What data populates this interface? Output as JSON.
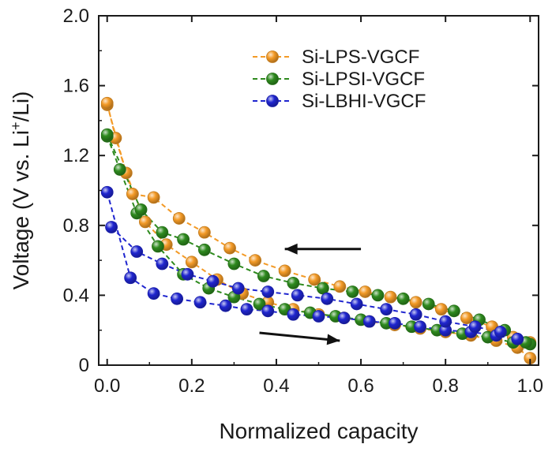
{
  "chart_data": {
    "type": "scatter",
    "title": "",
    "xlabel": "Normalized capacity",
    "ylabel": "Voltage (V vs. Li+/Li)",
    "ylabel_parts": {
      "pre": "Voltage (V vs. Li",
      "sup": "+",
      "post": "/Li)"
    },
    "xlim": [
      -0.02,
      1.02
    ],
    "ylim": [
      0.0,
      2.0
    ],
    "xticks": [
      0.0,
      0.2,
      0.4,
      0.6,
      0.8,
      1.0
    ],
    "xtick_labels": [
      "0.0",
      "0.2",
      "0.4",
      "0.6",
      "0.8",
      "1.0"
    ],
    "yticks": [
      0.0,
      0.4,
      0.8,
      1.2,
      1.6,
      2.0
    ],
    "ytick_labels": [
      "0",
      "0.4",
      "0.8",
      "1.2",
      "1.6",
      "2.0"
    ],
    "legend_position": "top-right",
    "annotations": [
      {
        "type": "arrow",
        "direction": "left",
        "from": [
          0.6,
          0.665
        ],
        "to": [
          0.42,
          0.665
        ],
        "meaning": "charge"
      },
      {
        "type": "arrow",
        "direction": "right",
        "from": [
          0.36,
          0.185
        ],
        "to": [
          0.55,
          0.14
        ],
        "meaning": "discharge"
      }
    ],
    "series": [
      {
        "name": "Si-LPS-VGCF",
        "color": "#f39a26",
        "discharge": {
          "x": [
            0.0,
            0.045,
            0.09,
            0.14,
            0.2,
            0.26,
            0.32,
            0.38,
            0.44,
            0.5,
            0.56,
            0.62,
            0.68,
            0.74,
            0.8,
            0.86,
            0.92,
            0.97,
            1.0
          ],
          "y": [
            1.49,
            1.1,
            0.82,
            0.69,
            0.59,
            0.49,
            0.41,
            0.36,
            0.32,
            0.29,
            0.27,
            0.25,
            0.23,
            0.21,
            0.19,
            0.17,
            0.14,
            0.1,
            0.04
          ]
        },
        "charge": {
          "x": [
            0.0,
            0.02,
            0.06,
            0.11,
            0.17,
            0.23,
            0.29,
            0.35,
            0.42,
            0.49,
            0.55,
            0.61,
            0.67,
            0.73,
            0.79,
            0.85,
            0.91,
            0.96,
            1.0
          ],
          "y": [
            1.5,
            1.3,
            0.98,
            0.96,
            0.84,
            0.76,
            0.67,
            0.6,
            0.54,
            0.49,
            0.45,
            0.42,
            0.39,
            0.36,
            0.32,
            0.27,
            0.22,
            0.16,
            0.13
          ]
        }
      },
      {
        "name": "Si-LPSI-VGCF",
        "color": "#2e8a1e",
        "discharge": {
          "x": [
            0.0,
            0.03,
            0.07,
            0.12,
            0.18,
            0.24,
            0.3,
            0.36,
            0.42,
            0.48,
            0.54,
            0.6,
            0.66,
            0.72,
            0.78,
            0.84,
            0.9,
            0.96,
            1.0
          ],
          "y": [
            1.31,
            1.12,
            0.87,
            0.68,
            0.52,
            0.44,
            0.39,
            0.35,
            0.32,
            0.3,
            0.28,
            0.26,
            0.24,
            0.22,
            0.2,
            0.18,
            0.16,
            0.13,
            0.12
          ]
        },
        "charge": {
          "x": [
            0.0,
            0.08,
            0.13,
            0.18,
            0.23,
            0.3,
            0.37,
            0.44,
            0.51,
            0.58,
            0.64,
            0.7,
            0.76,
            0.82,
            0.88,
            0.94,
            0.99
          ],
          "y": [
            1.32,
            0.89,
            0.76,
            0.72,
            0.66,
            0.58,
            0.51,
            0.47,
            0.44,
            0.42,
            0.4,
            0.38,
            0.35,
            0.31,
            0.26,
            0.2,
            0.13
          ]
        }
      },
      {
        "name": "Si-LBHI-VGCF",
        "color": "#1f25cf",
        "discharge": {
          "x": [
            0.0,
            0.055,
            0.11,
            0.165,
            0.22,
            0.28,
            0.33,
            0.38,
            0.44,
            0.5,
            0.56,
            0.62,
            0.68,
            0.74,
            0.8,
            0.86,
            0.92,
            0.97
          ],
          "y": [
            0.99,
            0.5,
            0.41,
            0.38,
            0.36,
            0.34,
            0.32,
            0.31,
            0.29,
            0.28,
            0.27,
            0.25,
            0.24,
            0.22,
            0.2,
            0.19,
            0.17,
            0.15
          ]
        },
        "charge": {
          "x": [
            0.01,
            0.07,
            0.13,
            0.19,
            0.25,
            0.31,
            0.38,
            0.45,
            0.52,
            0.59,
            0.66,
            0.73,
            0.8,
            0.87,
            0.93
          ],
          "y": [
            0.79,
            0.65,
            0.58,
            0.52,
            0.48,
            0.44,
            0.42,
            0.4,
            0.38,
            0.35,
            0.32,
            0.29,
            0.25,
            0.22,
            0.19
          ]
        }
      }
    ]
  }
}
